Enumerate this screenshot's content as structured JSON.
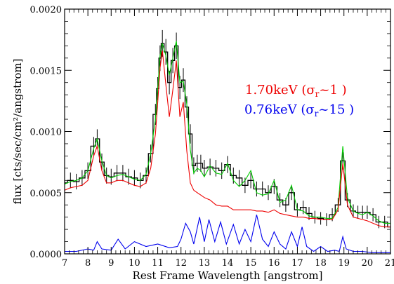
{
  "chart_data": {
    "type": "line",
    "xlabel": "Rest Frame Wavelength [angstrom]",
    "ylabel": "flux [cts/sec/cm²/angstrom]",
    "xlim": [
      7,
      21
    ],
    "ylim": [
      0,
      0.002
    ],
    "x_ticks": [
      7,
      8,
      9,
      10,
      11,
      12,
      13,
      14,
      15,
      16,
      17,
      18,
      19,
      20,
      21
    ],
    "y_ticks": [
      "0.0000",
      "0.0005",
      "0.0010",
      "0.0015",
      "0.0020"
    ],
    "y_tick_values": [
      0,
      0.0005,
      0.001,
      0.0015,
      0.002
    ],
    "annotations": [
      {
        "text": "1.70keV (σ",
        "sub": "r",
        "tail": "~1 )",
        "color": "#ee0000"
      },
      {
        "text": "0.76keV (σ",
        "sub": "r",
        "tail": "~15 )",
        "color": "#0000ee"
      }
    ],
    "series": [
      {
        "color": "#000000",
        "style": "steps-with-errorbars",
        "x": [
          7.0,
          7.25,
          7.5,
          7.75,
          8.0,
          8.25,
          8.4,
          8.6,
          8.8,
          9.0,
          9.25,
          9.5,
          9.75,
          10.0,
          10.25,
          10.5,
          10.7,
          10.9,
          11.0,
          11.1,
          11.2,
          11.35,
          11.5,
          11.65,
          11.8,
          11.95,
          12.1,
          12.25,
          12.4,
          12.55,
          12.7,
          12.85,
          13.0,
          13.25,
          13.5,
          13.75,
          14.0,
          14.25,
          14.5,
          14.75,
          15.0,
          15.25,
          15.5,
          15.75,
          16.0,
          16.25,
          16.5,
          16.75,
          17.0,
          17.25,
          17.5,
          17.75,
          18.0,
          18.25,
          18.5,
          18.75,
          18.95,
          19.15,
          19.4,
          19.6,
          19.8,
          20.0,
          20.25,
          20.5,
          20.75,
          21.0
        ],
        "y": [
          0.00058,
          0.0006,
          0.00059,
          0.00062,
          0.00068,
          0.00088,
          0.00094,
          0.00075,
          0.00064,
          0.00063,
          0.00066,
          0.00066,
          0.00063,
          0.00062,
          0.0006,
          0.00064,
          0.00082,
          0.00114,
          0.00135,
          0.0016,
          0.00172,
          0.00165,
          0.0014,
          0.00158,
          0.0017,
          0.00136,
          0.00142,
          0.0012,
          0.00098,
          0.00072,
          0.00074,
          0.00074,
          0.0007,
          0.00071,
          0.0007,
          0.00068,
          0.00073,
          0.00064,
          0.00062,
          0.00056,
          0.0006,
          0.00053,
          0.00053,
          0.0005,
          0.00055,
          0.00044,
          0.0004,
          0.0005,
          0.00036,
          0.00038,
          0.00033,
          0.0003,
          0.00029,
          0.00028,
          0.00032,
          0.0004,
          0.00076,
          0.00044,
          0.00035,
          0.00034,
          0.00034,
          0.00034,
          0.00032,
          0.00026,
          0.00026,
          0.00022
        ]
      },
      {
        "color": "#00cc00",
        "style": "line",
        "x": [
          7.0,
          7.25,
          7.5,
          7.75,
          8.0,
          8.25,
          8.4,
          8.6,
          8.8,
          9.0,
          9.25,
          9.5,
          9.75,
          10.0,
          10.25,
          10.5,
          10.7,
          10.9,
          11.0,
          11.1,
          11.2,
          11.35,
          11.5,
          11.65,
          11.8,
          11.95,
          12.1,
          12.25,
          12.4,
          12.55,
          12.7,
          12.85,
          13.0,
          13.25,
          13.5,
          13.75,
          14.0,
          14.25,
          14.5,
          14.75,
          15.0,
          15.25,
          15.5,
          15.75,
          16.0,
          16.25,
          16.5,
          16.75,
          17.0,
          17.25,
          17.5,
          17.75,
          18.0,
          18.25,
          18.5,
          18.75,
          18.95,
          19.15,
          19.4,
          19.6,
          19.8,
          20.0,
          20.25,
          20.5,
          20.75,
          21.0
        ],
        "y": [
          0.00057,
          0.00059,
          0.0006,
          0.00062,
          0.00068,
          0.00086,
          0.00094,
          0.00076,
          0.00064,
          0.00062,
          0.00064,
          0.00065,
          0.00063,
          0.00061,
          0.0006,
          0.00065,
          0.00082,
          0.0011,
          0.00135,
          0.00162,
          0.00172,
          0.00162,
          0.00146,
          0.0016,
          0.00174,
          0.0014,
          0.00141,
          0.00122,
          0.00085,
          0.00066,
          0.0007,
          0.00068,
          0.00063,
          0.00072,
          0.00066,
          0.00065,
          0.00074,
          0.0006,
          0.00055,
          0.0006,
          0.00068,
          0.0005,
          0.00048,
          0.00049,
          0.0006,
          0.00042,
          0.00044,
          0.00056,
          0.00036,
          0.00035,
          0.00031,
          0.0003,
          0.0003,
          0.00029,
          0.00029,
          0.00038,
          0.00088,
          0.00046,
          0.00035,
          0.00033,
          0.00032,
          0.00034,
          0.00031,
          0.00027,
          0.00025,
          0.00025
        ]
      },
      {
        "color": "#ee0000",
        "style": "line",
        "x": [
          7.0,
          7.25,
          7.5,
          7.75,
          8.0,
          8.25,
          8.4,
          8.6,
          8.8,
          9.0,
          9.25,
          9.5,
          9.75,
          10.0,
          10.25,
          10.5,
          10.7,
          10.9,
          11.0,
          11.1,
          11.2,
          11.35,
          11.5,
          11.65,
          11.8,
          11.95,
          12.1,
          12.25,
          12.4,
          12.55,
          12.7,
          12.85,
          13.0,
          13.25,
          13.5,
          13.75,
          14.0,
          14.25,
          14.5,
          14.75,
          15.0,
          15.25,
          15.5,
          15.75,
          16.0,
          16.25,
          16.5,
          16.75,
          17.0,
          17.25,
          17.5,
          17.75,
          18.0,
          18.25,
          18.5,
          18.75,
          18.95,
          19.15,
          19.4,
          19.6,
          19.8,
          20.0,
          20.25,
          20.5,
          20.75,
          21.0
        ],
        "y": [
          0.00052,
          0.00054,
          0.00055,
          0.00056,
          0.0006,
          0.0008,
          0.00088,
          0.00068,
          0.00058,
          0.00058,
          0.0006,
          0.0006,
          0.00058,
          0.00056,
          0.00055,
          0.00058,
          0.0007,
          0.00098,
          0.00124,
          0.00152,
          0.00166,
          0.00138,
          0.00112,
          0.00134,
          0.00158,
          0.00112,
          0.00124,
          0.00084,
          0.00058,
          0.00052,
          0.0005,
          0.00048,
          0.00046,
          0.00044,
          0.0004,
          0.00039,
          0.00039,
          0.00036,
          0.00036,
          0.00036,
          0.00036,
          0.00035,
          0.00035,
          0.00034,
          0.00036,
          0.00033,
          0.00032,
          0.00031,
          0.0003,
          0.0003,
          0.00029,
          0.00029,
          0.00028,
          0.00028,
          0.00028,
          0.00036,
          0.00074,
          0.0004,
          0.0003,
          0.00029,
          0.00028,
          0.00027,
          0.00025,
          0.00023,
          0.00022,
          0.00022
        ]
      },
      {
        "color": "#0000ee",
        "style": "line",
        "x": [
          7.0,
          7.5,
          8.0,
          8.25,
          8.4,
          8.6,
          9.0,
          9.3,
          9.6,
          10.0,
          10.5,
          11.0,
          11.5,
          11.85,
          12.0,
          12.2,
          12.4,
          12.55,
          12.8,
          13.0,
          13.2,
          13.45,
          13.7,
          13.95,
          14.25,
          14.5,
          14.75,
          15.0,
          15.25,
          15.5,
          15.75,
          16.0,
          16.25,
          16.5,
          16.75,
          17.0,
          17.2,
          17.4,
          17.7,
          18.0,
          18.3,
          18.6,
          18.8,
          18.95,
          19.1,
          19.4,
          19.8,
          20.2,
          20.6,
          21.0
        ],
        "y": [
          2e-05,
          2e-05,
          4e-05,
          3e-05,
          0.0001,
          4e-05,
          3e-05,
          0.00012,
          4e-05,
          0.0001,
          6e-05,
          8e-05,
          5e-05,
          6e-05,
          0.00012,
          0.00025,
          0.00018,
          8e-05,
          0.0003,
          0.0001,
          0.00028,
          0.0001,
          0.00026,
          8e-05,
          0.00024,
          8e-05,
          0.0002,
          0.0001,
          0.00032,
          0.00012,
          6e-05,
          0.00018,
          8e-05,
          4e-05,
          0.00018,
          6e-05,
          0.00022,
          6e-05,
          2e-05,
          6e-05,
          2e-05,
          3e-05,
          2e-05,
          0.00014,
          4e-05,
          2e-05,
          2e-05,
          1e-05,
          1e-05,
          1e-05
        ]
      }
    ]
  }
}
